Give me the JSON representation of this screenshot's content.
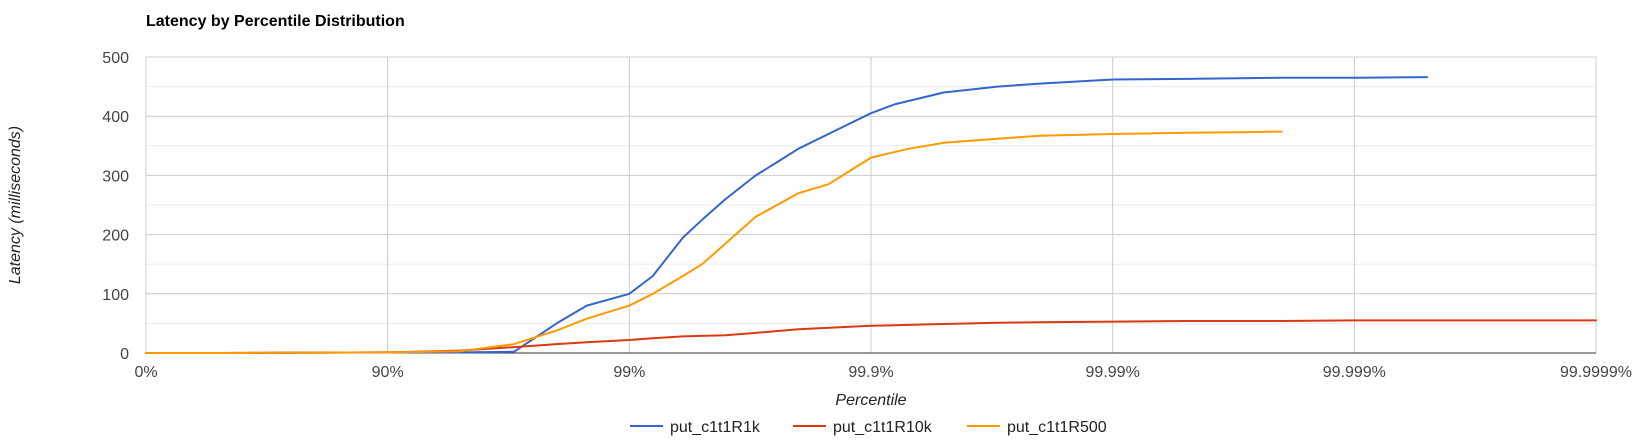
{
  "chart_data": {
    "type": "line",
    "title": "Latency by Percentile Distribution",
    "xlabel": "Percentile",
    "ylabel": "Latency (milliseconds)",
    "x_scale": "log-percentile (1/(1-p))",
    "x_ticks": [
      "0%",
      "90%",
      "99%",
      "99.9%",
      "99.99%",
      "99.999%",
      "99.9999%"
    ],
    "y_ticks": [
      "0",
      "100",
      "200",
      "300",
      "400",
      "500"
    ],
    "ylim": [
      0,
      500
    ],
    "grid": true,
    "legend_position": "bottom",
    "series": [
      {
        "name": "put_c1t1R1k",
        "color": "#3366cc",
        "points": [
          [
            "0%",
            0
          ],
          [
            "50%",
            0
          ],
          [
            "90%",
            1
          ],
          [
            "95%",
            1
          ],
          [
            "97%",
            2
          ],
          [
            "98%",
            50
          ],
          [
            "98.5%",
            80
          ],
          [
            "99%",
            100
          ],
          [
            "99.2%",
            130
          ],
          [
            "99.4%",
            195
          ],
          [
            "99.5%",
            225
          ],
          [
            "99.6%",
            260
          ],
          [
            "99.7%",
            300
          ],
          [
            "99.75%",
            320
          ],
          [
            "99.8%",
            345
          ],
          [
            "99.85%",
            370
          ],
          [
            "99.9%",
            405
          ],
          [
            "99.92%",
            420
          ],
          [
            "99.95%",
            440
          ],
          [
            "99.97%",
            450
          ],
          [
            "99.98%",
            455
          ],
          [
            "99.99%",
            462
          ],
          [
            "99.995%",
            463
          ],
          [
            "99.998%",
            465
          ],
          [
            "99.999%",
            465
          ],
          [
            "99.9995%",
            466
          ]
        ]
      },
      {
        "name": "put_c1t1R10k",
        "color": "#dc3912",
        "points": [
          [
            "0%",
            0
          ],
          [
            "50%",
            0
          ],
          [
            "90%",
            1
          ],
          [
            "95%",
            4
          ],
          [
            "97%",
            10
          ],
          [
            "98%",
            15
          ],
          [
            "98.5%",
            18
          ],
          [
            "99%",
            22
          ],
          [
            "99.2%",
            25
          ],
          [
            "99.4%",
            28
          ],
          [
            "99.6%",
            30
          ],
          [
            "99.7%",
            34
          ],
          [
            "99.8%",
            40
          ],
          [
            "99.9%",
            46
          ],
          [
            "99.95%",
            49
          ],
          [
            "99.97%",
            51
          ],
          [
            "99.98%",
            52
          ],
          [
            "99.99%",
            53
          ],
          [
            "99.995%",
            54
          ],
          [
            "99.998%",
            54
          ],
          [
            "99.999%",
            55
          ],
          [
            "99.9995%",
            55
          ],
          [
            "99.9998%",
            55
          ],
          [
            "99.9999%",
            55
          ]
        ]
      },
      {
        "name": "put_c1t1R500",
        "color": "#ff9900",
        "points": [
          [
            "0%",
            0
          ],
          [
            "50%",
            0
          ],
          [
            "90%",
            1
          ],
          [
            "95%",
            3
          ],
          [
            "97%",
            15
          ],
          [
            "98%",
            38
          ],
          [
            "98.5%",
            58
          ],
          [
            "99%",
            80
          ],
          [
            "99.2%",
            100
          ],
          [
            "99.4%",
            130
          ],
          [
            "99.5%",
            150
          ],
          [
            "99.6%",
            185
          ],
          [
            "99.7%",
            230
          ],
          [
            "99.8%",
            270
          ],
          [
            "99.85%",
            285
          ],
          [
            "99.9%",
            330
          ],
          [
            "99.93%",
            345
          ],
          [
            "99.95%",
            355
          ],
          [
            "99.97%",
            362
          ],
          [
            "99.98%",
            367
          ],
          [
            "99.99%",
            370
          ],
          [
            "99.995%",
            372
          ],
          [
            "99.997%",
            373
          ],
          [
            "99.998%",
            374
          ]
        ]
      }
    ]
  }
}
